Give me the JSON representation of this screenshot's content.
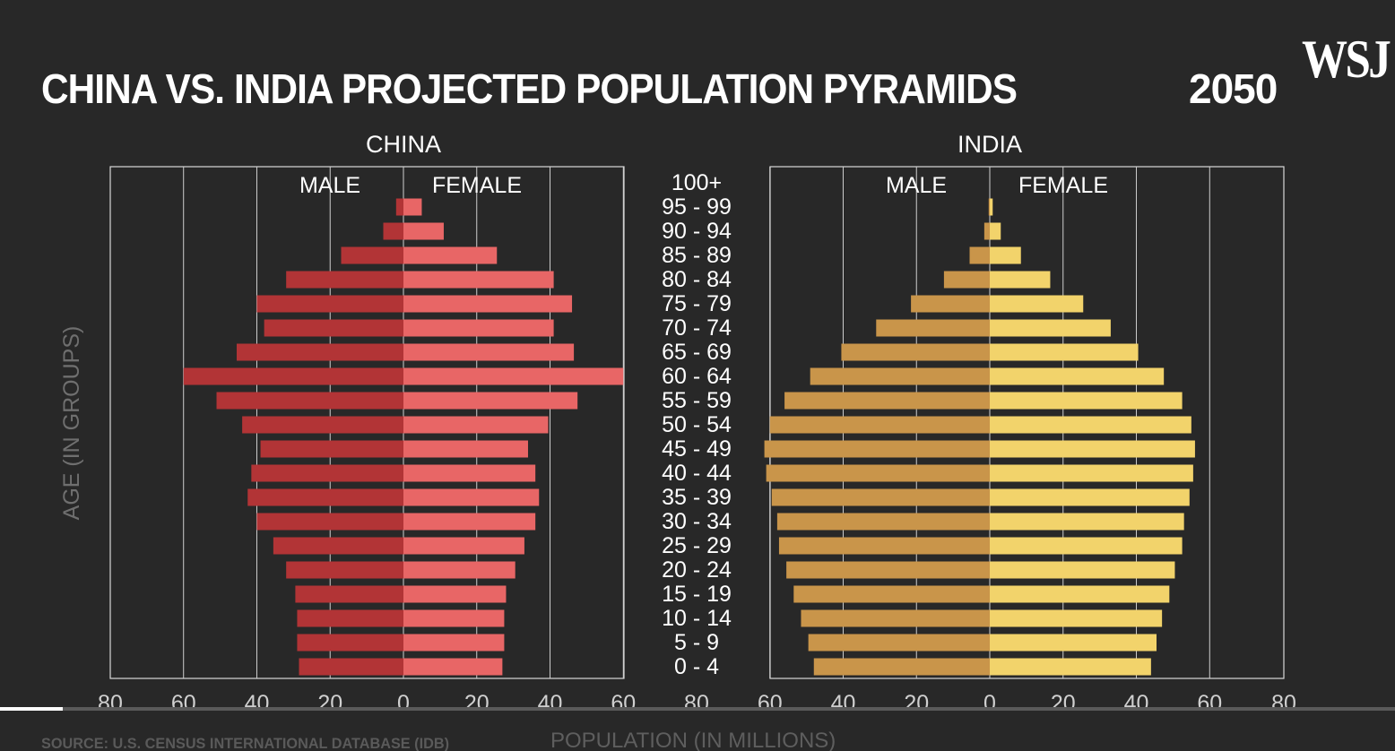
{
  "header": {
    "title": "CHINA VS. INDIA PROJECTED POPULATION PYRAMIDS",
    "year": "2050",
    "logo": "WSJ"
  },
  "footer": {
    "source": "SOURCE: U.S. CENSUS INTERNATIONAL DATABASE (IDB)",
    "xlabel": "POPULATION (IN MILLIONS)"
  },
  "video": {
    "progress": 0.045
  },
  "chart_data": {
    "type": "bar",
    "orientation": "horizontal-pyramid",
    "title": "CHINA VS. INDIA PROJECTED POPULATION PYRAMIDS",
    "xlabel": "POPULATION (IN MILLIONS)",
    "ylabel": "AGE (IN GROUPS)",
    "xlim": [
      -80,
      80
    ],
    "x_ticks": [
      "80",
      "60",
      "40",
      "20",
      "0",
      "20",
      "40",
      "60"
    ],
    "grid": true,
    "categories": [
      "100+",
      "95 - 99",
      "90 - 94",
      "85 - 89",
      "80 - 84",
      "75 - 79",
      "70 - 74",
      "65 - 69",
      "60 - 64",
      "55 - 59",
      "50 - 54",
      "45 - 49",
      "40 - 44",
      "35 - 39",
      "30 - 34",
      "25 - 29",
      "20 - 24",
      "15 - 19",
      "10 - 14",
      "5 - 9",
      "0 - 4"
    ],
    "panels": [
      {
        "name": "CHINA",
        "male_label": "MALE",
        "female_label": "FEMALE",
        "male_color": "#b23436",
        "female_color": "#e86666",
        "male": [
          0,
          2,
          5.5,
          17,
          32,
          40,
          38,
          45.5,
          60,
          51,
          44,
          39,
          41.5,
          42.5,
          40,
          35.5,
          32,
          29.5,
          29,
          29,
          28.5
        ],
        "female": [
          0,
          5,
          11,
          25.5,
          41,
          46,
          41,
          46.5,
          60,
          47.5,
          39.5,
          34,
          36,
          37,
          36,
          33,
          30.5,
          28,
          27.5,
          27.5,
          27
        ]
      },
      {
        "name": "INDIA",
        "male_label": "MALE",
        "female_label": "FEMALE",
        "male_color": "#c9954a",
        "female_color": "#f2d36b",
        "male": [
          0,
          0.3,
          1.5,
          5.5,
          12.5,
          21.5,
          31,
          40.5,
          49,
          56,
          60,
          61.5,
          61,
          59.5,
          58,
          57.5,
          55.5,
          53.5,
          51.5,
          49.5,
          48
        ],
        "female": [
          0,
          0.8,
          3,
          8.5,
          16.5,
          25.5,
          33,
          40.5,
          47.5,
          52.5,
          55,
          56,
          55.5,
          54.5,
          53,
          52.5,
          50.5,
          49,
          47,
          45.5,
          44
        ]
      }
    ]
  }
}
